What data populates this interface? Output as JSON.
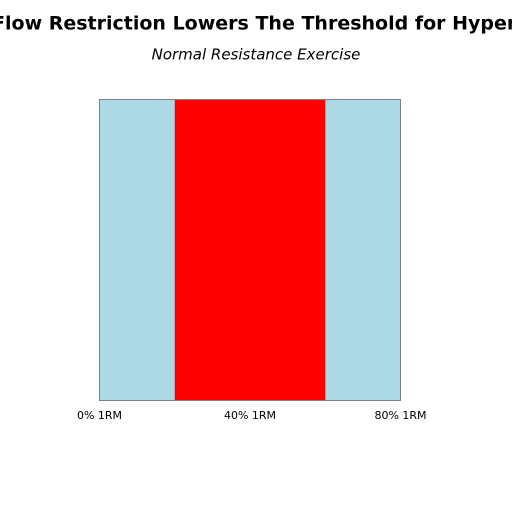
{
  "chart_data": {
    "type": "band",
    "title": "Blood Flow Restriction Lowers The Threshold for Hypertrophy",
    "subtitle": "Normal Resistance Exercise",
    "xlim": [
      0,
      80
    ],
    "xticks": [
      {
        "value": 0,
        "label": "0% 1RM"
      },
      {
        "value": 40,
        "label": "40% 1RM"
      },
      {
        "value": 80,
        "label": "80% 1RM"
      }
    ],
    "band": [
      20,
      60
    ],
    "band_color": "#ff0000",
    "background_color": "#add8e6"
  }
}
